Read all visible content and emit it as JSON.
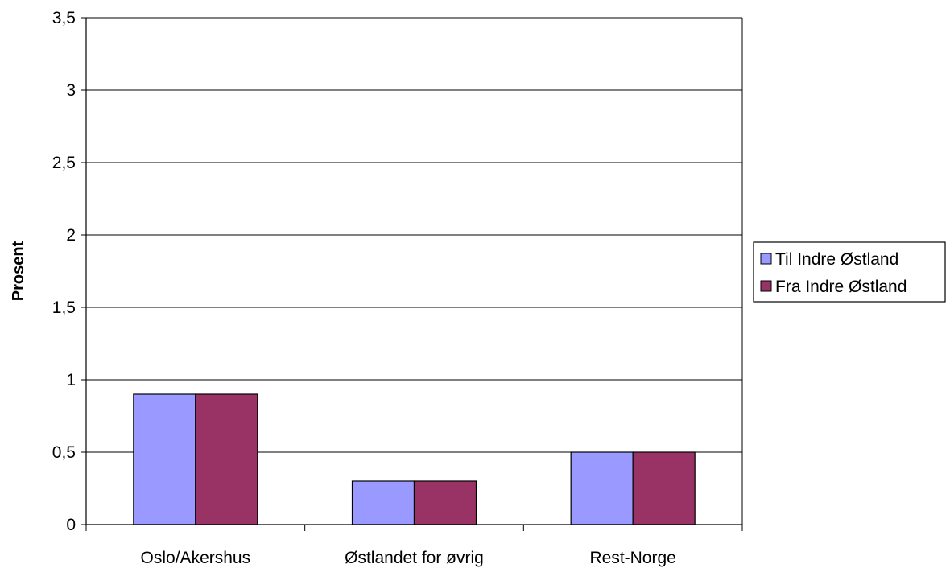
{
  "chart_data": {
    "type": "bar",
    "categories": [
      "Oslo/Akershus",
      "Østlandet for øvrig",
      "Rest-Norge"
    ],
    "series": [
      {
        "name": "Til Indre Østland",
        "values": [
          0.9,
          0.3,
          0.5
        ],
        "color": "#9999ff"
      },
      {
        "name": "Fra Indre Østland",
        "values": [
          0.9,
          0.3,
          0.5
        ],
        "color": "#993366"
      }
    ],
    "ylabel": "Prosent",
    "ylim": [
      0,
      3.5
    ],
    "yticks": [
      0,
      0.5,
      1,
      1.5,
      2,
      2.5,
      3,
      3.5
    ],
    "ytick_labels": [
      "0",
      "0,5",
      "1",
      "1,5",
      "2",
      "2,5",
      "3",
      "3,5"
    ],
    "grid": true,
    "legend_position": "right"
  }
}
